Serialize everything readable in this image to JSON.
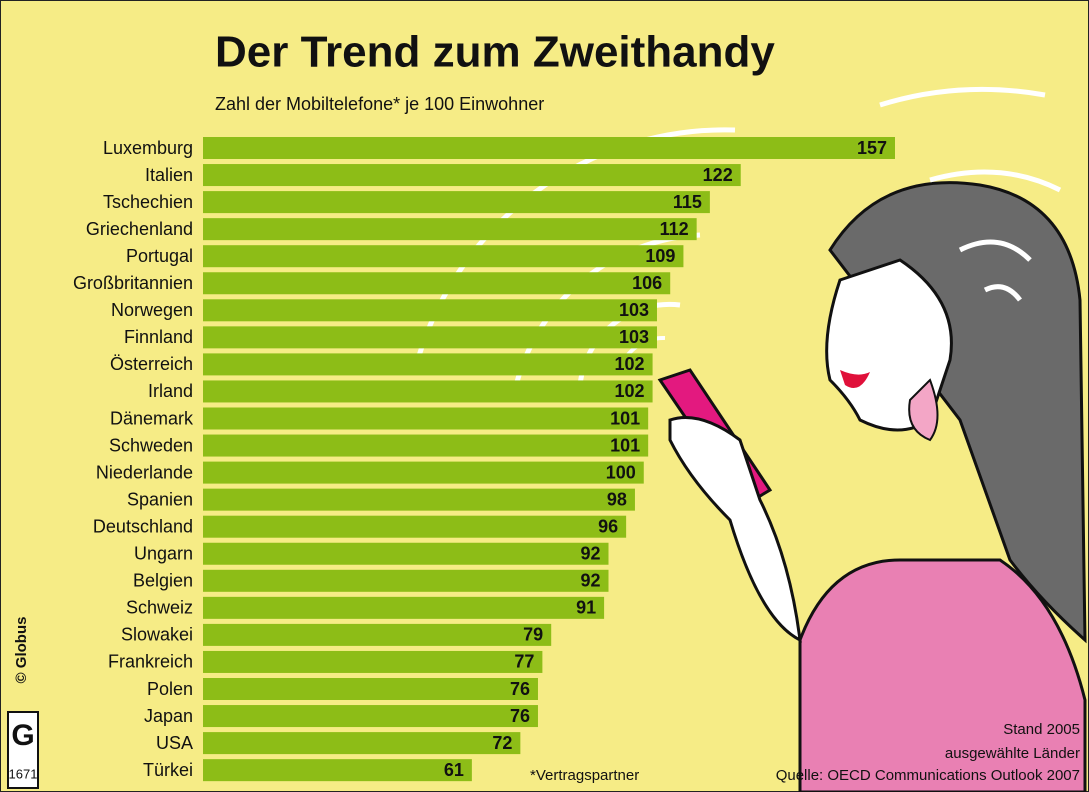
{
  "chart_data": {
    "type": "bar",
    "orientation": "horizontal",
    "title": "Der Trend zum Zweithandy",
    "subtitle": "Zahl der Mobiltelefone* je 100 Einwohner",
    "categories": [
      "Luxemburg",
      "Italien",
      "Tschechien",
      "Griechenland",
      "Portugal",
      "Großbritannien",
      "Norwegen",
      "Finnland",
      "Österreich",
      "Irland",
      "Dänemark",
      "Schweden",
      "Niederlande",
      "Spanien",
      "Deutschland",
      "Ungarn",
      "Belgien",
      "Schweiz",
      "Slowakei",
      "Frankreich",
      "Polen",
      "Japan",
      "USA",
      "Türkei"
    ],
    "values": [
      157,
      122,
      115,
      112,
      109,
      106,
      103,
      103,
      102,
      102,
      101,
      101,
      100,
      98,
      96,
      92,
      92,
      91,
      79,
      77,
      76,
      76,
      72,
      61
    ],
    "color": "#8dbd17",
    "footnote": "*Vertragspartner",
    "notes": [
      "Stand 2005",
      "ausgewählte Länder",
      "Quelle: OECD Communications Outlook 2007"
    ],
    "copyright": "© Globus",
    "logo_letter": "G",
    "logo_number": "1671"
  }
}
